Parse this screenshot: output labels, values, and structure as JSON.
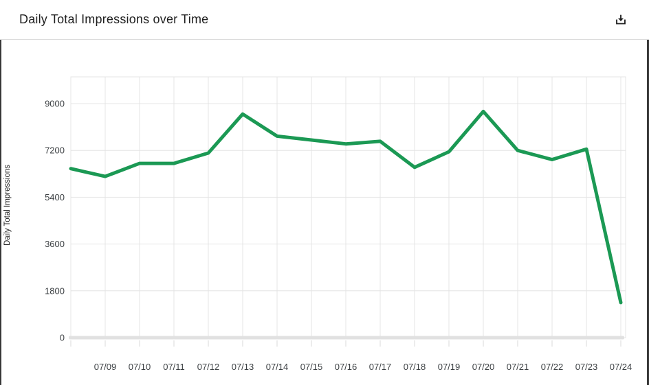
{
  "header": {
    "title": "Daily Total Impressions over Time"
  },
  "chart_data": {
    "type": "line",
    "title": "Daily Total Impressions over Time",
    "xlabel": "",
    "ylabel": "Daily Total Impressions",
    "categories": [
      "",
      "07/09",
      "07/10",
      "07/11",
      "07/12",
      "07/13",
      "07/14",
      "07/15",
      "07/16",
      "07/17",
      "07/18",
      "07/19",
      "07/20",
      "07/21",
      "07/22",
      "07/23",
      "07/24"
    ],
    "series": [
      {
        "name": "Daily Total Impressions",
        "color": "#1b9954",
        "values": [
          6500,
          6200,
          6700,
          6700,
          7100,
          8600,
          7750,
          7600,
          7450,
          7550,
          6550,
          7150,
          8700,
          7200,
          6850,
          7250,
          1350
        ]
      }
    ],
    "y_ticks": [
      0,
      1800,
      3600,
      5400,
      7200,
      9000
    ],
    "ylim": [
      0,
      10030
    ],
    "grid": true,
    "legend_position": "none",
    "colors": {
      "line": "#1b9954",
      "grid": "#e4e4e4",
      "axis_bar": "#e1e1e1",
      "tick": "#d8d8d8",
      "tick_label": "#3c4043",
      "axis_title": "#1f1f1f",
      "title": "#1f1f1f",
      "edge_stripe": "#383838"
    }
  }
}
